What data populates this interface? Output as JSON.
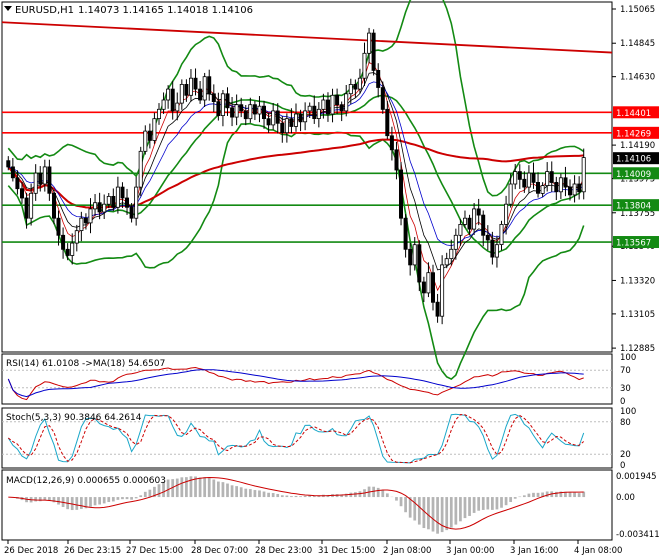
{
  "header": {
    "symbol": "EURUSD,H1",
    "ohlc": "1.14073 1.14165 1.14018 1.14106"
  },
  "colors": {
    "candle": "#000000",
    "bollinger": "#138a13",
    "ma_long": "#cc0000",
    "trendline": "#cc0000",
    "ma_fast_1": "#cc0000",
    "ma_fast_2": "#0000cc",
    "ma_fast_3": "#000000",
    "level_red": "#ff0000",
    "level_green": "#138a13",
    "rsi": "#cc0000",
    "rsi_ma": "#0000cc",
    "stoch_main": "#1aa7c9",
    "stoch_signal": "#cc0000",
    "macd_hist": "#b4b4b4",
    "macd_signal": "#cc0000",
    "current_price_bg": "#000000"
  },
  "chart_data": [
    {
      "type": "candlestick",
      "name": "price",
      "ylim": [
        1.1286,
        1.1511
      ],
      "y_ticks": [
        "1.15065",
        "1.14845",
        "1.14630",
        "1.14190",
        "1.13975",
        "1.13755",
        "1.13540",
        "1.13320",
        "1.13105",
        "1.12885"
      ],
      "x_ticks": [
        "26 Dec 2018",
        "26 Dec 23:15",
        "27 Dec 15:00",
        "28 Dec 07:00",
        "28 Dec 23:00",
        "31 Dec 15:00",
        "2 Jan 08:00",
        "3 Jan 00:00",
        "3 Jan 16:00",
        "4 Jan 08:00"
      ],
      "levels": [
        {
          "value": 1.14401,
          "label": "1.14401",
          "color": "red"
        },
        {
          "value": 1.14269,
          "label": "1.14269",
          "color": "red"
        },
        {
          "value": 1.14009,
          "label": "1.14009",
          "color": "green"
        },
        {
          "value": 1.13804,
          "label": "1.13804",
          "color": "green"
        },
        {
          "value": 1.13567,
          "label": "1.13567",
          "color": "green"
        }
      ],
      "current_price": "1.14106",
      "close": [
        1.1405,
        1.1398,
        1.1391,
        1.1385,
        1.1372,
        1.1388,
        1.1401,
        1.1394,
        1.1405,
        1.1388,
        1.1372,
        1.1361,
        1.1352,
        1.1348,
        1.1356,
        1.1364,
        1.1372,
        1.1369,
        1.1378,
        1.1382,
        1.1376,
        1.1381,
        1.1386,
        1.1379,
        1.1392,
        1.1385,
        1.1379,
        1.1372,
        1.1392,
        1.1415,
        1.1428,
        1.1422,
        1.1436,
        1.1442,
        1.1448,
        1.1455,
        1.1441,
        1.1446,
        1.1458,
        1.1451,
        1.1462,
        1.1455,
        1.1448,
        1.1463,
        1.1452,
        1.1447,
        1.1438,
        1.1452,
        1.1443,
        1.1437,
        1.1445,
        1.1441,
        1.1436,
        1.1445,
        1.1439,
        1.1444,
        1.1436,
        1.1432,
        1.1441,
        1.1433,
        1.1427,
        1.1436,
        1.1431,
        1.1439,
        1.1434,
        1.1441,
        1.1444,
        1.1436,
        1.1442,
        1.1448,
        1.1439,
        1.1451,
        1.1445,
        1.1441,
        1.1452,
        1.1458,
        1.1455,
        1.1462,
        1.1478,
        1.1491,
        1.1467,
        1.1456,
        1.1442,
        1.1425,
        1.1416,
        1.1403,
        1.1372,
        1.1352,
        1.1342,
        1.1355,
        1.1331,
        1.1324,
        1.1337,
        1.1318,
        1.1309,
        1.1342,
        1.1346,
        1.1352,
        1.1361,
        1.1368,
        1.1372,
        1.1365,
        1.1378,
        1.1374,
        1.1361,
        1.1358,
        1.1347,
        1.1355,
        1.1368,
        1.1381,
        1.1394,
        1.1402,
        1.1397,
        1.1392,
        1.1401,
        1.1395,
        1.1388,
        1.1393,
        1.1402,
        1.1395,
        1.1389,
        1.1398,
        1.1392,
        1.1387,
        1.1394,
        1.1389,
        1.1411
      ]
    },
    {
      "type": "line",
      "name": "rsi",
      "title": "RSI(14) 61.0108 ->MA(18) 54.6507",
      "ylim": [
        0,
        100
      ],
      "y_ticks": [
        "100",
        "70",
        "30",
        "0"
      ]
    },
    {
      "type": "line",
      "name": "stochastic",
      "title": "Stoch(5,3,3) 90.3846 64.2614",
      "ylim": [
        0,
        100
      ],
      "y_ticks": [
        "100",
        "80",
        "20",
        "0"
      ]
    },
    {
      "type": "bar",
      "name": "macd",
      "title": "MACD(12,26,9) 0.000655 0.000603",
      "ylim": [
        -0.003411,
        0.001945
      ],
      "y_ticks": [
        "0.001945",
        "0.00",
        "-0.003411"
      ]
    }
  ]
}
